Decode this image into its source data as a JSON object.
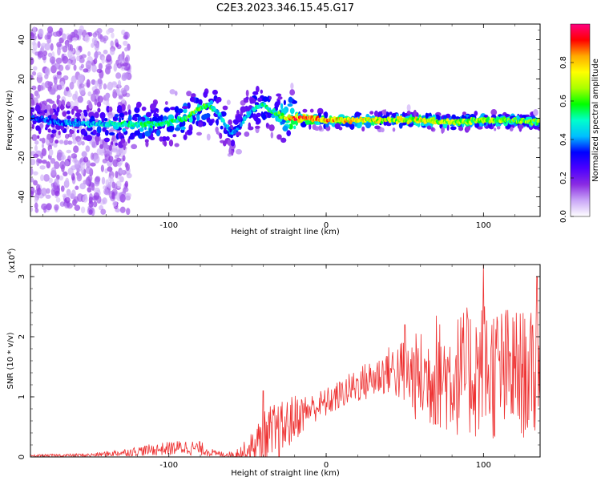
{
  "chart_data": [
    {
      "type": "heatmap",
      "panel": "top",
      "title": "C2E3.2023.346.15.45.G17",
      "xlabel": "Height of straight line (km)",
      "ylabel": "Frequency (Hz)",
      "xlim": [
        -188,
        136
      ],
      "ylim": [
        -50,
        48
      ],
      "xticks": [
        -100,
        0,
        100
      ],
      "yticks": [
        -40,
        -20,
        0,
        20,
        40
      ],
      "colorbar": {
        "label": "Normalized spectral amplitude",
        "range": [
          0.0,
          1.0
        ],
        "ticks": [
          "0.0",
          "0.2",
          "0.4",
          "0.6",
          "0.8"
        ],
        "colors": [
          "#ffffff",
          "#c9a6f7",
          "#8a2be2",
          "#4b00ff",
          "#0000ff",
          "#00bfff",
          "#00ffcc",
          "#00ff00",
          "#aaff00",
          "#ffff00",
          "#ffaa00",
          "#ff0000",
          "#ff0080"
        ]
      },
      "ridge": {
        "x": [
          -188,
          -170,
          -150,
          -140,
          -130,
          -120,
          -110,
          -100,
          -90,
          -80,
          -75,
          -70,
          -65,
          -60,
          -55,
          -50,
          -45,
          -40,
          -35,
          -30,
          -25,
          -20,
          -10,
          0,
          20,
          40,
          60,
          80,
          100,
          110,
          120,
          136
        ],
        "f": [
          0,
          -2,
          -3,
          -3,
          -3,
          -3,
          -3,
          -2,
          0,
          5,
          7,
          4,
          -2,
          -8,
          -4,
          2,
          5,
          7,
          4,
          2,
          0,
          0,
          0,
          -1,
          -1,
          -1,
          -1,
          -2,
          -1,
          -1,
          -1,
          -2
        ],
        "amp": [
          0.35,
          0.4,
          0.45,
          0.5,
          0.55,
          0.55,
          0.55,
          0.55,
          0.6,
          0.65,
          0.6,
          0.5,
          0.45,
          0.4,
          0.4,
          0.45,
          0.5,
          0.55,
          0.55,
          0.6,
          0.75,
          0.95,
          0.9,
          0.85,
          0.8,
          0.75,
          0.75,
          0.7,
          0.7,
          0.7,
          0.65,
          0.65
        ]
      },
      "noise_region": {
        "x_range": [
          -188,
          -125
        ],
        "f_range": [
          -48,
          46
        ]
      }
    },
    {
      "type": "line",
      "panel": "bottom",
      "title": "",
      "xlabel": "Height of straight line (km)",
      "ylabel": "SNR (10 * v/v)",
      "ylabel_scale": "(x10",
      "ylabel_exp": "4",
      "xlim": [
        -188,
        136
      ],
      "ylim": [
        0,
        3.2
      ],
      "xticks": [
        -100,
        0,
        100
      ],
      "yticks": [
        0,
        1,
        2,
        3
      ],
      "color": "#ee3333",
      "envelope": {
        "x": [
          -188,
          -150,
          -130,
          -110,
          -90,
          -80,
          -70,
          -60,
          -50,
          -40,
          -35,
          -30,
          -20,
          -10,
          0,
          10,
          20,
          30,
          40,
          50,
          60,
          70,
          80,
          90,
          100,
          110,
          120,
          130,
          136
        ],
        "mid": [
          0.02,
          0.03,
          0.07,
          0.12,
          0.16,
          0.14,
          0.05,
          0.04,
          0.1,
          0.3,
          0.35,
          0.4,
          0.65,
          0.8,
          0.9,
          1.05,
          1.2,
          1.3,
          1.45,
          1.4,
          1.3,
          1.35,
          1.35,
          1.4,
          1.45,
          1.4,
          1.4,
          1.35,
          1.4
        ],
        "amp": [
          0.02,
          0.03,
          0.06,
          0.1,
          0.13,
          0.12,
          0.05,
          0.05,
          0.2,
          0.45,
          0.55,
          0.5,
          0.4,
          0.25,
          0.25,
          0.25,
          0.3,
          0.35,
          0.4,
          0.6,
          0.8,
          0.9,
          1.0,
          1.1,
          1.2,
          1.15,
          1.1,
          1.05,
          1.2
        ]
      },
      "peaks": [
        {
          "x": 100,
          "y": 3.2
        },
        {
          "x": 134,
          "y": 3.0
        },
        {
          "x": 70,
          "y": 2.35
        },
        {
          "x": 50,
          "y": 2.2
        },
        {
          "x": -40,
          "y": 1.1
        }
      ]
    }
  ]
}
